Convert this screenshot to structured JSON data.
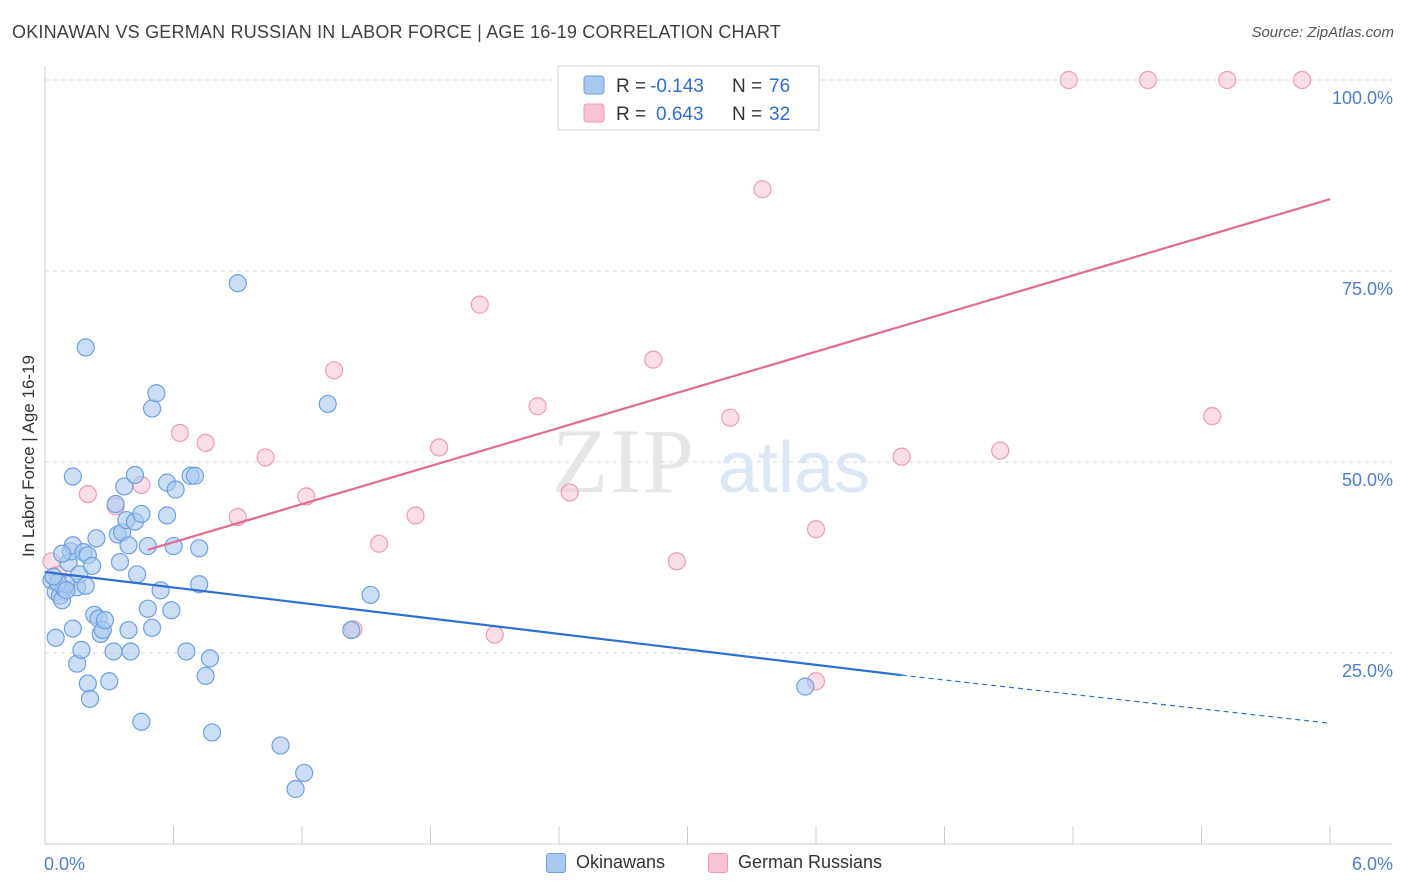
{
  "title": "OKINAWAN VS GERMAN RUSSIAN IN LABOR FORCE | AGE 16-19 CORRELATION CHART",
  "source": "Source: ZipAtlas.com",
  "watermark": {
    "zip": "ZIP",
    "atlas": "atlas"
  },
  "colors": {
    "blue_fill": "#a9c8f0",
    "blue_stroke": "#6ea0e0",
    "blue_line": "#2f6fd0",
    "pink_fill": "#f7c3d3",
    "pink_stroke": "#ef9ab6",
    "pink_line": "#e06b93",
    "axis_text": "#4a7fd0",
    "grid": "#d9d9d9"
  },
  "legend_top": {
    "rows": [
      {
        "r_label": "R =",
        "r_value": "-0.143",
        "n_label": "N =",
        "n_value": "76"
      },
      {
        "r_label": "R =",
        "r_value": "0.643",
        "n_label": "N =",
        "n_value": "32"
      }
    ]
  },
  "legend_bottom": {
    "items": [
      "Okinawans",
      "German Russians"
    ]
  },
  "chart_data": {
    "type": "scatter",
    "title": "OKINAWAN VS GERMAN RUSSIAN IN LABOR FORCE | AGE 16-19 CORRELATION CHART",
    "xlabel": "",
    "ylabel": "In Labor Force | Age 16-19",
    "xlim": [
      0,
      6.0
    ],
    "ylim": [
      0,
      102
    ],
    "x_tick_labels": [
      "0.0%",
      "6.0%"
    ],
    "y_ticks": [
      25,
      50,
      75,
      100
    ],
    "y_tick_labels": [
      "25.0%",
      "50.0%",
      "75.0%",
      "100.0%"
    ],
    "grid": true,
    "series": [
      {
        "name": "Okinawans",
        "r": -0.143,
        "n": 76,
        "trend": {
          "x0": 0,
          "y0": 35.6,
          "x1": 4.0,
          "y1": 22.1,
          "dash_to_x": 6.0,
          "dash_to_y": 15.8
        },
        "points": [
          [
            0.03,
            34.5
          ],
          [
            0.05,
            33.0
          ],
          [
            0.07,
            32.5
          ],
          [
            0.09,
            33.4
          ],
          [
            0.11,
            36.8
          ],
          [
            0.12,
            38.3
          ],
          [
            0.13,
            39.1
          ],
          [
            0.15,
            33.6
          ],
          [
            0.16,
            35.3
          ],
          [
            0.18,
            38.2
          ],
          [
            0.2,
            37.8
          ],
          [
            0.22,
            36.4
          ],
          [
            0.24,
            40.0
          ],
          [
            0.05,
            27.0
          ],
          [
            0.08,
            38.0
          ],
          [
            0.1,
            34.0
          ],
          [
            0.13,
            28.2
          ],
          [
            0.15,
            23.6
          ],
          [
            0.17,
            25.4
          ],
          [
            0.19,
            33.8
          ],
          [
            0.2,
            21.0
          ],
          [
            0.21,
            19.0
          ],
          [
            0.23,
            30.0
          ],
          [
            0.25,
            29.5
          ],
          [
            0.26,
            27.5
          ],
          [
            0.27,
            28.0
          ],
          [
            0.28,
            29.3
          ],
          [
            0.3,
            21.3
          ],
          [
            0.32,
            25.2
          ],
          [
            0.33,
            44.5
          ],
          [
            0.35,
            36.9
          ],
          [
            0.34,
            40.5
          ],
          [
            0.36,
            40.8
          ],
          [
            0.37,
            46.8
          ],
          [
            0.38,
            42.4
          ],
          [
            0.39,
            28.0
          ],
          [
            0.39,
            39.1
          ],
          [
            0.4,
            25.2
          ],
          [
            0.42,
            42.2
          ],
          [
            0.42,
            48.3
          ],
          [
            0.43,
            35.3
          ],
          [
            0.45,
            43.2
          ],
          [
            0.45,
            16.0
          ],
          [
            0.48,
            39.0
          ],
          [
            0.48,
            30.8
          ],
          [
            0.5,
            28.3
          ],
          [
            0.5,
            57.0
          ],
          [
            0.52,
            59.0
          ],
          [
            0.54,
            33.2
          ],
          [
            0.57,
            47.3
          ],
          [
            0.57,
            43.0
          ],
          [
            0.59,
            30.6
          ],
          [
            0.6,
            39.0
          ],
          [
            0.61,
            46.4
          ],
          [
            0.66,
            25.2
          ],
          [
            0.68,
            48.2
          ],
          [
            0.7,
            48.2
          ],
          [
            0.72,
            38.7
          ],
          [
            0.72,
            34.0
          ],
          [
            0.75,
            22.0
          ],
          [
            0.77,
            24.3
          ],
          [
            0.78,
            14.6
          ],
          [
            0.19,
            65.0
          ],
          [
            0.13,
            48.1
          ],
          [
            0.9,
            73.4
          ],
          [
            1.1,
            12.9
          ],
          [
            1.17,
            7.2
          ],
          [
            1.21,
            9.3
          ],
          [
            1.32,
            57.6
          ],
          [
            1.43,
            28.0
          ],
          [
            1.52,
            32.6
          ],
          [
            3.55,
            20.6
          ],
          [
            0.08,
            31.9
          ],
          [
            0.06,
            34.2
          ],
          [
            0.04,
            35.0
          ],
          [
            0.1,
            33.2
          ]
        ]
      },
      {
        "name": "German Russians",
        "r": 0.643,
        "n": 32,
        "trend": {
          "x0": 0.48,
          "y0": 38.5,
          "x1": 6.0,
          "y1": 84.4
        },
        "points": [
          [
            0.03,
            37.0
          ],
          [
            0.06,
            35.2
          ],
          [
            0.2,
            45.8
          ],
          [
            0.33,
            44.2
          ],
          [
            0.45,
            47.0
          ],
          [
            0.63,
            53.8
          ],
          [
            0.75,
            52.5
          ],
          [
            0.9,
            42.8
          ],
          [
            1.03,
            50.6
          ],
          [
            1.22,
            45.5
          ],
          [
            1.35,
            62.0
          ],
          [
            1.44,
            28.1
          ],
          [
            1.56,
            39.3
          ],
          [
            1.73,
            43.0
          ],
          [
            1.84,
            51.9
          ],
          [
            2.03,
            70.6
          ],
          [
            2.1,
            27.4
          ],
          [
            2.3,
            57.3
          ],
          [
            2.45,
            46.0
          ],
          [
            2.84,
            63.4
          ],
          [
            2.95,
            37.0
          ],
          [
            3.2,
            55.8
          ],
          [
            3.35,
            85.7
          ],
          [
            3.6,
            41.2
          ],
          [
            3.6,
            21.3
          ],
          [
            4.0,
            50.7
          ],
          [
            4.46,
            51.5
          ],
          [
            4.78,
            100.0
          ],
          [
            5.15,
            100.0
          ],
          [
            5.45,
            56.0
          ],
          [
            5.52,
            100.0
          ],
          [
            5.87,
            100.0
          ]
        ]
      }
    ]
  }
}
